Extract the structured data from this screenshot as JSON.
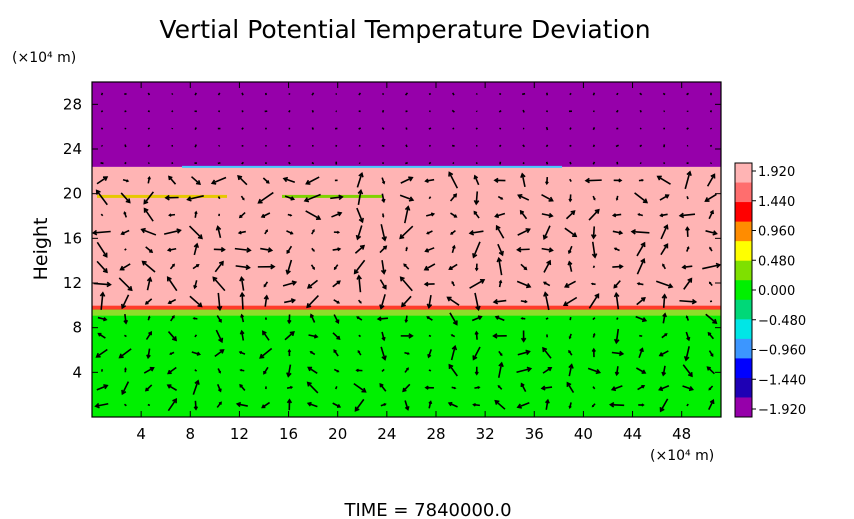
{
  "chart_data": {
    "type": "heatmap",
    "title": "Vertial Potential Temperature Deviation",
    "ylabel": "Height",
    "x_unit": "(×10⁴ m)",
    "y_unit": "(×10⁴ m)",
    "footer": "TIME  =  7840000.0",
    "x_ticks": [
      "4",
      "8",
      "12",
      "16",
      "20",
      "24",
      "28",
      "32",
      "36",
      "40",
      "44",
      "48"
    ],
    "x_tick_values": [
      4,
      8,
      12,
      16,
      20,
      24,
      28,
      32,
      36,
      40,
      44,
      48
    ],
    "xlim": [
      0,
      51.2
    ],
    "y_ticks": [
      "4",
      "8",
      "12",
      "16",
      "20",
      "24",
      "28"
    ],
    "y_tick_values": [
      4,
      8,
      12,
      16,
      20,
      24,
      28
    ],
    "ylim": [
      0,
      30
    ],
    "layers": [
      {
        "y_range": [
          0,
          9.7
        ],
        "value": 0.0,
        "color": "#00f000"
      },
      {
        "y_range": [
          9.7,
          22.4
        ],
        "value": 1.92,
        "color": "#ffb4b4"
      },
      {
        "y_range": [
          22.4,
          30
        ],
        "value": -1.92,
        "color": "#9600aa"
      }
    ],
    "colorbar": {
      "labels": [
        "1.920",
        "1.440",
        "0.960",
        "0.480",
        "0.000",
        "−0.480",
        "−0.960",
        "−1.440",
        "−1.920"
      ],
      "colors": [
        "#ffb4b4",
        "#ff6e6e",
        "#ff0000",
        "#ff8c00",
        "#ffff00",
        "#7fe000",
        "#00f000",
        "#00d878",
        "#00e6e6",
        "#3c96ff",
        "#0000ff",
        "#1e00b4",
        "#9600aa"
      ]
    },
    "vector_field": "wind vectors",
    "colors": {
      "lower": "#00f000",
      "middle": "#ffb4b4",
      "upper": "#9600aa",
      "arrows": "#000000"
    }
  }
}
